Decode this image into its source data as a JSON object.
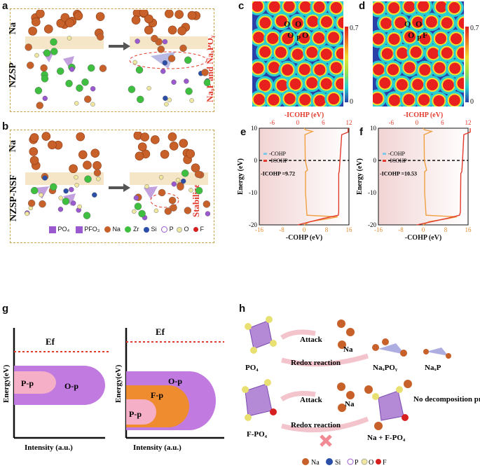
{
  "panels": {
    "a": "a",
    "b": "b",
    "c": "c",
    "d": "d",
    "e": "e",
    "f": "f",
    "g": "g",
    "h": "h"
  },
  "panel_a": {
    "na_label": "Na",
    "nzsp_label": "NZSP",
    "product_label": "NaₓP and NaₓPOᵧ"
  },
  "panel_b": {
    "na_label": "Na",
    "nzsp_label": "NZSP-NSF",
    "stabilize_label": "Stabilize",
    "legend": [
      "PO₄",
      "PFO₃",
      "Na",
      "Zr",
      "Si",
      "P",
      "O",
      "F"
    ]
  },
  "panel_c": {
    "atoms": [
      "O",
      "O",
      "O",
      "P",
      "O"
    ],
    "scale_max": "0.7",
    "scale_min": "0"
  },
  "panel_d": {
    "atoms": [
      "O",
      "O",
      "O",
      "P",
      "F"
    ],
    "scale_max": "0.7",
    "scale_min": "0"
  },
  "chart_data": [
    {
      "type": "line",
      "panel": "e",
      "top_axis_label": "-ICOHP (eV)",
      "bottom_axis_label": "-COHP (eV)",
      "ylabel": "Energy (eV)",
      "top_ticks": [
        "-6",
        "0",
        "6",
        "12"
      ],
      "bottom_ticks": [
        "-16",
        "-8",
        "0",
        "8",
        "16"
      ],
      "y_ticks": [
        "10",
        "0",
        "-10",
        "-20"
      ],
      "ylim": [
        -20,
        10
      ],
      "legend": [
        "-COHP",
        "-ICOHP"
      ],
      "annotation": "-ICOHP =9.72",
      "series": [
        {
          "name": "-COHP",
          "energy": [
            -20,
            -19,
            -18,
            -17.5,
            -17,
            -10,
            -3.5,
            -3,
            0,
            8,
            9,
            9.5,
            10
          ],
          "values": [
            0,
            2,
            9,
            12,
            1,
            0.5,
            0.5,
            1.2,
            0.4,
            0.3,
            3,
            0.5,
            0
          ]
        },
        {
          "name": "-ICOHP",
          "energy": [
            -20,
            -18,
            -17,
            -16,
            -4,
            -3.5,
            0,
            8,
            8.8,
            10
          ],
          "values": [
            0,
            6,
            9.5,
            9.6,
            9.6,
            9.72,
            9.9,
            10.3,
            11.8,
            11.8
          ]
        }
      ]
    },
    {
      "type": "line",
      "panel": "f",
      "top_axis_label": "-ICOHP (eV)",
      "bottom_axis_label": "-COHP (eV)",
      "ylabel": "Energy (eV)",
      "top_ticks": [
        "-6",
        "0",
        "6",
        "12"
      ],
      "bottom_ticks": [
        "-16",
        "-8",
        "0",
        "8",
        "16"
      ],
      "y_ticks": [
        "10",
        "0",
        "-10",
        "-20"
      ],
      "ylim": [
        -20,
        10
      ],
      "legend": [
        "-COHP",
        "-ICOHP"
      ],
      "annotation": "-ICOHP =10.53",
      "series": [
        {
          "name": "-COHP",
          "energy": [
            -20,
            -19,
            -18,
            -17.5,
            -17,
            -10,
            -3.5,
            -3,
            0,
            8,
            9,
            9.5,
            10
          ],
          "values": [
            0,
            2,
            9,
            12,
            1,
            0.5,
            0.5,
            1.2,
            0.4,
            0.3,
            3,
            0.5,
            0
          ]
        },
        {
          "name": "-ICOHP",
          "energy": [
            -20,
            -18,
            -17,
            -16,
            -4,
            -3.5,
            0,
            8,
            8.8,
            10
          ],
          "values": [
            0,
            7,
            10,
            10.2,
            10.3,
            10.53,
            10.7,
            11,
            12.5,
            12.5
          ]
        }
      ]
    }
  ],
  "panel_g": {
    "ef": "Ef",
    "ylabel": "Energy(eV)",
    "xlabel": "Intensity (a.u.)",
    "left_bands": [
      "P-p",
      "O-p"
    ],
    "right_bands": [
      "P-p",
      "F-p",
      "O-p"
    ]
  },
  "panel_h": {
    "po4": "PO₄",
    "attack": "Attack",
    "na": "Na",
    "redox": "Redox reaction",
    "naxpoy": "NaₓPOᵧ",
    "naxp": "NaₓP",
    "fpo4": "F-PO₄",
    "no_decomp": "No decomposition product",
    "na_fpo4": "Na + F-PO₄",
    "legend": [
      "Na",
      "Si",
      "P",
      "O",
      "F"
    ]
  },
  "colors": {
    "na": "#c8602a",
    "zr": "#3fbf3f",
    "si": "#2b4fa8",
    "p": "#9b59d0",
    "o": "#f0e8a0",
    "f": "#d62020",
    "cohp": "#f0a040",
    "icohp": "#e23a2b"
  }
}
